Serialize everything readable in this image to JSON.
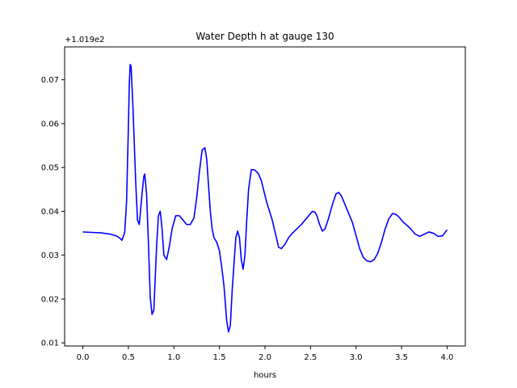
{
  "chart_data": {
    "type": "line",
    "title": "Water Depth h at gauge 130",
    "xlabel": "hours",
    "ylabel": "",
    "offset_label": "+1.019e2",
    "xlim": [
      -0.2,
      4.2
    ],
    "ylim": [
      0.0093,
      0.0775
    ],
    "xticks": [
      0.0,
      0.5,
      1.0,
      1.5,
      2.0,
      2.5,
      3.0,
      3.5,
      4.0
    ],
    "xtick_labels": [
      "0.0",
      "0.5",
      "1.0",
      "1.5",
      "2.0",
      "2.5",
      "3.0",
      "3.5",
      "4.0"
    ],
    "yticks": [
      0.01,
      0.02,
      0.03,
      0.04,
      0.05,
      0.06,
      0.07
    ],
    "ytick_labels": [
      "0.01",
      "0.02",
      "0.03",
      "0.04",
      "0.05",
      "0.06",
      "0.07"
    ],
    "grid": false,
    "series": [
      {
        "color": "#0000ff",
        "x": [
          0.0,
          0.1,
          0.2,
          0.3,
          0.35,
          0.38,
          0.41,
          0.43,
          0.46,
          0.48,
          0.5,
          0.51,
          0.52,
          0.53,
          0.55,
          0.58,
          0.6,
          0.62,
          0.65,
          0.67,
          0.68,
          0.7,
          0.72,
          0.74,
          0.76,
          0.78,
          0.81,
          0.83,
          0.85,
          0.87,
          0.89,
          0.92,
          0.95,
          0.98,
          1.02,
          1.06,
          1.1,
          1.14,
          1.18,
          1.22,
          1.25,
          1.28,
          1.31,
          1.34,
          1.36,
          1.38,
          1.4,
          1.42,
          1.44,
          1.47,
          1.5,
          1.53,
          1.55,
          1.58,
          1.6,
          1.62,
          1.63,
          1.64,
          1.66,
          1.68,
          1.7,
          1.72,
          1.74,
          1.76,
          1.78,
          1.8,
          1.82,
          1.85,
          1.88,
          1.91,
          1.93,
          1.96,
          1.99,
          2.02,
          2.05,
          2.08,
          2.12,
          2.15,
          2.18,
          2.22,
          2.26,
          2.3,
          2.35,
          2.4,
          2.44,
          2.48,
          2.52,
          2.55,
          2.57,
          2.6,
          2.63,
          2.66,
          2.7,
          2.74,
          2.78,
          2.81,
          2.84,
          2.88,
          2.92,
          2.96,
          3.0,
          3.04,
          3.08,
          3.12,
          3.16,
          3.2,
          3.24,
          3.28,
          3.32,
          3.36,
          3.4,
          3.44,
          3.48,
          3.52,
          3.56,
          3.6,
          3.65,
          3.7,
          3.75,
          3.8,
          3.85,
          3.9,
          3.95,
          4.0
        ],
        "y": [
          0.0353,
          0.0352,
          0.0351,
          0.0348,
          0.0345,
          0.0343,
          0.0338,
          0.0334,
          0.0352,
          0.042,
          0.059,
          0.069,
          0.0735,
          0.073,
          0.064,
          0.047,
          0.038,
          0.037,
          0.044,
          0.048,
          0.0485,
          0.044,
          0.033,
          0.0205,
          0.0165,
          0.0175,
          0.032,
          0.039,
          0.04,
          0.036,
          0.03,
          0.029,
          0.032,
          0.036,
          0.039,
          0.039,
          0.038,
          0.037,
          0.037,
          0.0385,
          0.043,
          0.049,
          0.054,
          0.0545,
          0.052,
          0.046,
          0.04,
          0.036,
          0.034,
          0.033,
          0.031,
          0.0265,
          0.023,
          0.015,
          0.0125,
          0.014,
          0.018,
          0.022,
          0.028,
          0.034,
          0.0355,
          0.034,
          0.029,
          0.0268,
          0.03,
          0.038,
          0.045,
          0.0495,
          0.0495,
          0.049,
          0.0485,
          0.047,
          0.0445,
          0.042,
          0.04,
          0.038,
          0.0345,
          0.0318,
          0.0315,
          0.0325,
          0.034,
          0.035,
          0.036,
          0.037,
          0.038,
          0.039,
          0.04,
          0.0398,
          0.039,
          0.037,
          0.0355,
          0.036,
          0.0385,
          0.0415,
          0.044,
          0.0443,
          0.0435,
          0.0415,
          0.0395,
          0.0375,
          0.0345,
          0.0315,
          0.0295,
          0.0287,
          0.0285,
          0.029,
          0.0305,
          0.033,
          0.036,
          0.0383,
          0.0395,
          0.0393,
          0.0385,
          0.0375,
          0.0368,
          0.036,
          0.0348,
          0.0343,
          0.0348,
          0.0353,
          0.035,
          0.0343,
          0.0344,
          0.0358
        ]
      }
    ]
  }
}
